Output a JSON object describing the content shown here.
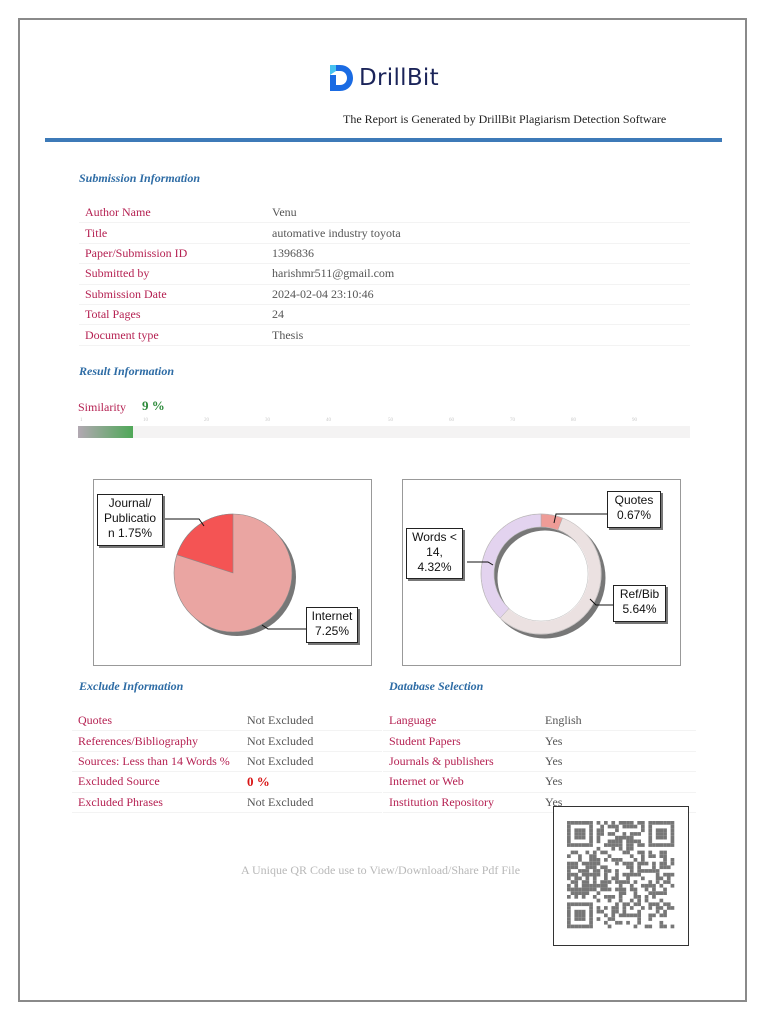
{
  "header": {
    "brand": "DrillBit",
    "tagline": "The Report is Generated by DrillBit Plagiarism Detection Software",
    "brand_color": "#1b2459",
    "rule_color": "#3d7ab8"
  },
  "submission": {
    "title": "Submission Information",
    "rows": [
      {
        "label": "Author Name",
        "value": "Venu"
      },
      {
        "label": "Title",
        "value": "automative industry toyota"
      },
      {
        "label": "Paper/Submission ID",
        "value": "1396836"
      },
      {
        "label": "Submitted by",
        "value": "harishmr511@gmail.com"
      },
      {
        "label": "Submission Date",
        "value": "2024-02-04 23:10:46"
      },
      {
        "label": "Total Pages",
        "value": "24"
      },
      {
        "label": "Document type",
        "value": "Thesis"
      }
    ]
  },
  "result": {
    "title": "Result Information",
    "similarity_label": "Similarity",
    "similarity_value": "9 %",
    "similarity_percent": 9,
    "scale_ticks": [
      "1",
      "10",
      "20",
      "30",
      "40",
      "50",
      "60",
      "70",
      "80",
      "90"
    ]
  },
  "chart_data": [
    {
      "type": "pie",
      "title": "",
      "categories": [
        "Journal/Publication",
        "Internet"
      ],
      "values": [
        1.75,
        7.25
      ],
      "labels": [
        "Journal/ Publicatio n 1.75%",
        "Internet 7.25%"
      ],
      "colors": [
        "#f45454",
        "#eaa5a2"
      ]
    },
    {
      "type": "pie",
      "subtype": "donut",
      "title": "",
      "categories": [
        "Quotes",
        "Ref/Bib",
        "Words < 14"
      ],
      "values": [
        0.67,
        5.64,
        4.32
      ],
      "labels": [
        "Quotes 0.67%",
        "Ref/Bib 5.64%",
        "Words < 14, 4.32%"
      ],
      "colors": [
        "#ee9c97",
        "#ebe1e1",
        "#e3d3ef"
      ]
    }
  ],
  "charts": {
    "left": {
      "journal_lines": [
        "Journal/",
        "Publicatio",
        "n 1.75%"
      ],
      "internet_lines": [
        "Internet",
        "7.25%"
      ]
    },
    "right": {
      "quotes_lines": [
        "Quotes",
        "0.67%"
      ],
      "refbib_lines": [
        "Ref/Bib",
        "5.64%"
      ],
      "words_lines": [
        "Words <",
        "14,",
        "4.32%"
      ]
    }
  },
  "exclude": {
    "title": "Exclude Information",
    "rows": [
      {
        "label": "Quotes",
        "value": "Not Excluded"
      },
      {
        "label": "References/Bibliography",
        "value": "Not Excluded"
      },
      {
        "label": "Sources: Less than 14 Words %",
        "value": "Not Excluded"
      },
      {
        "label": "Excluded Source",
        "value": "0 %"
      },
      {
        "label": "Excluded Phrases",
        "value": "Not Excluded"
      }
    ]
  },
  "database": {
    "title": "Database Selection",
    "rows": [
      {
        "label": "Language",
        "value": "English"
      },
      {
        "label": "Student Papers",
        "value": "Yes"
      },
      {
        "label": "Journals & publishers",
        "value": "Yes"
      },
      {
        "label": "Internet or Web",
        "value": "Yes"
      },
      {
        "label": "Institution Repository",
        "value": "Yes"
      }
    ]
  },
  "qr": {
    "caption": "A Unique QR Code use to View/Download/Share Pdf File"
  }
}
